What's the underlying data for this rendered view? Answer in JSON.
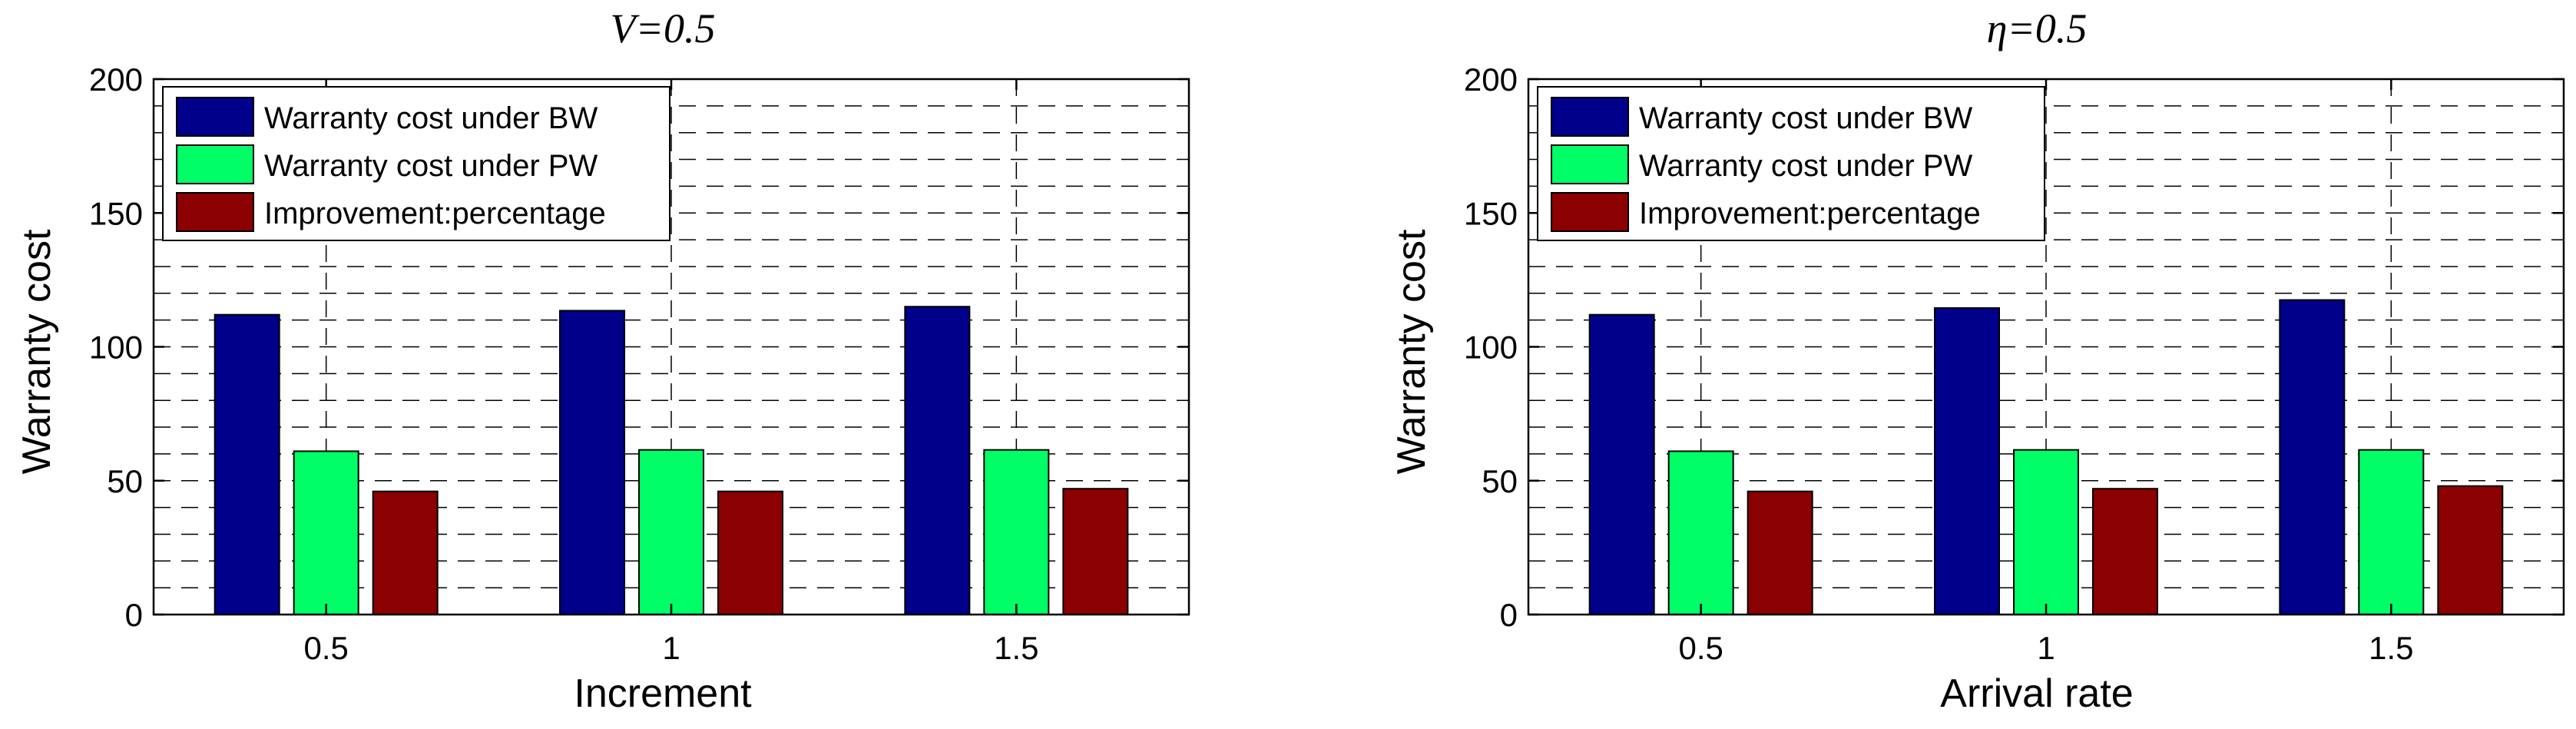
{
  "chart_data": [
    {
      "type": "bar",
      "title": "V=0.5",
      "xlabel": "Increment",
      "ylabel": "Warranty cost",
      "categories": [
        "0.5",
        "1",
        "1.5"
      ],
      "ylim": [
        0,
        200
      ],
      "yticks": [
        0,
        50,
        100,
        150,
        200
      ],
      "grid": true,
      "legend": "top-left",
      "series": [
        {
          "name": "Warranty cost under BW",
          "color": "#00008B",
          "values": [
            112,
            113.5,
            115
          ]
        },
        {
          "name": "Warranty cost under PW",
          "color": "#00FF66",
          "values": [
            61,
            61.5,
            61.5
          ]
        },
        {
          "name": "Improvement:percentage",
          "color": "#8B0000",
          "values": [
            46,
            46,
            47
          ]
        }
      ]
    },
    {
      "type": "bar",
      "title": "η=0.5",
      "xlabel": "Arrival rate",
      "ylabel": "Warranty cost",
      "categories": [
        "0.5",
        "1",
        "1.5"
      ],
      "ylim": [
        0,
        200
      ],
      "yticks": [
        0,
        50,
        100,
        150,
        200
      ],
      "grid": true,
      "legend": "top-left",
      "series": [
        {
          "name": "Warranty cost under BW",
          "color": "#00008B",
          "values": [
            112,
            114.5,
            117.5
          ]
        },
        {
          "name": "Warranty cost under PW",
          "color": "#00FF66",
          "values": [
            61,
            61.5,
            61.5
          ]
        },
        {
          "name": "Improvement:percentage",
          "color": "#8B0000",
          "values": [
            46,
            47,
            48
          ]
        }
      ]
    }
  ]
}
